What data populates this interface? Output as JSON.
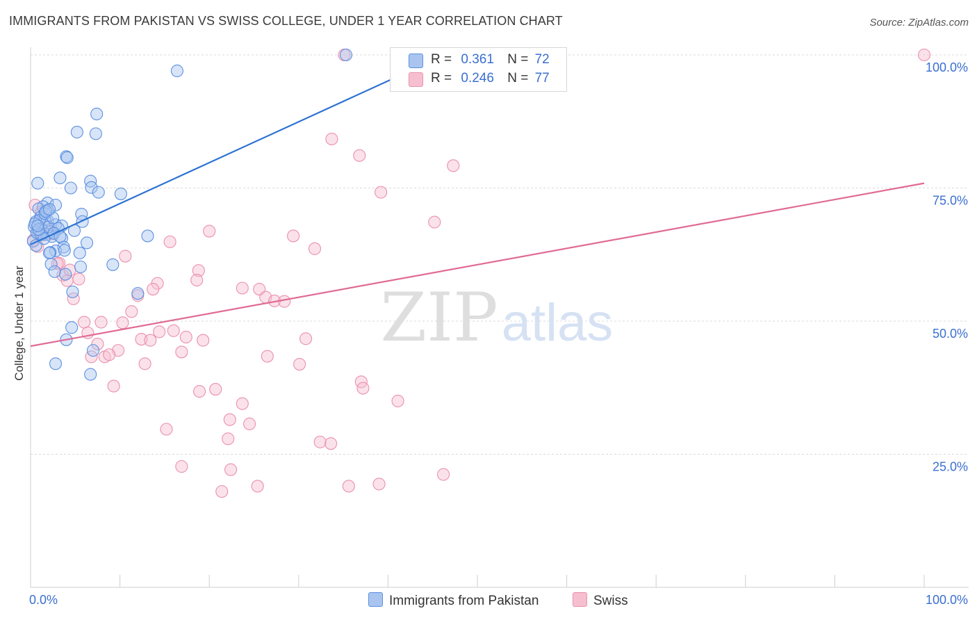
{
  "title": "IMMIGRANTS FROM PAKISTAN VS SWISS COLLEGE, UNDER 1 YEAR CORRELATION CHART",
  "source": "Source: ZipAtlas.com",
  "watermark": {
    "zip": "ZIP",
    "atlas": "atlas"
  },
  "legend": {
    "r_label": "R =",
    "n_label": "N =",
    "series": [
      {
        "r": "0.361",
        "n": "72"
      },
      {
        "r": "0.246",
        "n": "77"
      }
    ]
  },
  "bottom_legend": [
    "Immigrants from Pakistan",
    "Swiss"
  ],
  "colors": {
    "pakistan_fill": "#a9c5ef",
    "pakistan_stroke": "#5b8fe0",
    "pakistan_line": "#2e73d2",
    "swiss_fill": "#f6bfd0",
    "swiss_stroke": "#ea8fae",
    "swiss_line": "#e06a95",
    "tick_label": "#3a6fd0",
    "grid": "#d9d9d9"
  },
  "chart_data": {
    "type": "scatter",
    "xlabel": "",
    "ylabel": "College, Under 1 year",
    "xlim": [
      0,
      100
    ],
    "ylim": [
      0,
      100
    ],
    "x_tick_labels": [
      "0.0%",
      "100.0%"
    ],
    "y_ticks": [
      25,
      50,
      75,
      100
    ],
    "y_tick_labels": [
      "25.0%",
      "50.0%",
      "75.0%",
      "100.0%"
    ],
    "grid": true,
    "series": [
      {
        "name": "Immigrants from Pakistan",
        "points": [
          [
            35.3,
            100
          ],
          [
            16.4,
            97
          ],
          [
            7.4,
            88.9
          ],
          [
            5.2,
            85.5
          ],
          [
            7.3,
            85.2
          ],
          [
            4.0,
            80.9
          ],
          [
            4.1,
            80.7
          ],
          [
            3.3,
            76.9
          ],
          [
            0.8,
            75.9
          ],
          [
            6.7,
            76.3
          ],
          [
            4.5,
            75.0
          ],
          [
            6.8,
            75.1
          ],
          [
            7.6,
            74.2
          ],
          [
            10.1,
            73.9
          ],
          [
            1.9,
            72.2
          ],
          [
            1.4,
            71.5
          ],
          [
            2.8,
            71.8
          ],
          [
            0.9,
            71.1
          ],
          [
            1.9,
            70.8
          ],
          [
            5.7,
            70.1
          ],
          [
            1.1,
            69.5
          ],
          [
            1.9,
            68.9
          ],
          [
            1.6,
            69.1
          ],
          [
            0.6,
            68.7
          ],
          [
            5.8,
            68.7
          ],
          [
            2.8,
            68.1
          ],
          [
            3.5,
            67.9
          ],
          [
            0.4,
            67.7
          ],
          [
            1.3,
            67.1
          ],
          [
            2.2,
            66.8
          ],
          [
            4.9,
            67.0
          ],
          [
            0.9,
            66.5
          ],
          [
            1.8,
            66.3
          ],
          [
            2.4,
            65.9
          ],
          [
            3.5,
            65.6
          ],
          [
            13.1,
            66.0
          ],
          [
            0.3,
            65.0
          ],
          [
            6.3,
            64.7
          ],
          [
            0.6,
            64.2
          ],
          [
            3.7,
            63.9
          ],
          [
            2.8,
            63.2
          ],
          [
            2.2,
            62.9
          ],
          [
            3.8,
            63.3
          ],
          [
            2.1,
            62.8
          ],
          [
            5.5,
            62.8
          ],
          [
            2.3,
            60.7
          ],
          [
            5.6,
            60.2
          ],
          [
            9.2,
            60.6
          ],
          [
            2.7,
            59.3
          ],
          [
            3.9,
            58.8
          ],
          [
            4.7,
            55.5
          ],
          [
            12.0,
            55.2
          ],
          [
            4.6,
            48.8
          ],
          [
            4.0,
            46.5
          ],
          [
            7.0,
            44.5
          ],
          [
            2.8,
            42.0
          ],
          [
            6.7,
            40.0
          ],
          [
            0.7,
            66.6
          ],
          [
            1.0,
            68.9
          ],
          [
            1.6,
            70.2
          ],
          [
            2.0,
            67.7
          ],
          [
            2.5,
            69.4
          ],
          [
            3.1,
            67.4
          ],
          [
            1.2,
            66.2
          ],
          [
            0.5,
            68.3
          ],
          [
            2.6,
            66.5
          ],
          [
            1.5,
            65.5
          ],
          [
            3.3,
            65.9
          ],
          [
            0.9,
            67.2
          ],
          [
            1.7,
            70.6
          ],
          [
            2.1,
            71.0
          ],
          [
            0.8,
            67.9
          ]
        ]
      },
      {
        "name": "Swiss",
        "points": [
          [
            35.1,
            100
          ],
          [
            100,
            100
          ],
          [
            33.7,
            84.2
          ],
          [
            36.8,
            81.1
          ],
          [
            47.3,
            79.2
          ],
          [
            39.2,
            74.2
          ],
          [
            45.2,
            68.6
          ],
          [
            0.5,
            71.8
          ],
          [
            1.2,
            70.5
          ],
          [
            20.0,
            66.9
          ],
          [
            29.4,
            66.0
          ],
          [
            15.6,
            64.9
          ],
          [
            0.8,
            64.0
          ],
          [
            31.8,
            63.6
          ],
          [
            10.6,
            62.2
          ],
          [
            1.5,
            66.2
          ],
          [
            3.2,
            60.9
          ],
          [
            3.6,
            58.6
          ],
          [
            18.8,
            59.5
          ],
          [
            4.4,
            59.6
          ],
          [
            5.4,
            57.9
          ],
          [
            18.6,
            57.7
          ],
          [
            14.2,
            57.1
          ],
          [
            23.7,
            56.2
          ],
          [
            13.7,
            56.0
          ],
          [
            25.6,
            56.0
          ],
          [
            12.0,
            54.8
          ],
          [
            26.3,
            54.5
          ],
          [
            27.3,
            53.8
          ],
          [
            28.4,
            53.7
          ],
          [
            4.8,
            54.2
          ],
          [
            11.3,
            51.8
          ],
          [
            6.0,
            49.8
          ],
          [
            7.9,
            49.8
          ],
          [
            10.3,
            49.7
          ],
          [
            14.4,
            48.0
          ],
          [
            6.4,
            47.8
          ],
          [
            16.0,
            48.2
          ],
          [
            17.4,
            47.0
          ],
          [
            12.4,
            46.6
          ],
          [
            13.4,
            46.4
          ],
          [
            19.3,
            46.4
          ],
          [
            30.8,
            46.7
          ],
          [
            7.5,
            45.7
          ],
          [
            9.8,
            44.5
          ],
          [
            16.9,
            44.2
          ],
          [
            6.8,
            43.3
          ],
          [
            8.3,
            43.3
          ],
          [
            8.8,
            43.7
          ],
          [
            26.5,
            43.4
          ],
          [
            12.8,
            42.0
          ],
          [
            30.1,
            41.9
          ],
          [
            37.0,
            38.6
          ],
          [
            9.3,
            37.8
          ],
          [
            37.2,
            37.4
          ],
          [
            18.9,
            36.8
          ],
          [
            20.7,
            37.2
          ],
          [
            41.1,
            35.0
          ],
          [
            23.7,
            34.5
          ],
          [
            22.3,
            31.5
          ],
          [
            24.5,
            30.7
          ],
          [
            15.2,
            29.7
          ],
          [
            22.1,
            27.9
          ],
          [
            32.4,
            27.3
          ],
          [
            33.6,
            27.0
          ],
          [
            16.9,
            22.7
          ],
          [
            22.4,
            22.1
          ],
          [
            46.2,
            21.2
          ],
          [
            25.4,
            19.0
          ],
          [
            35.6,
            19.0
          ],
          [
            39.0,
            19.4
          ],
          [
            21.4,
            18.0
          ],
          [
            0.3,
            65.2
          ],
          [
            1.8,
            67.8
          ],
          [
            2.4,
            66.4
          ],
          [
            3.0,
            60.8
          ],
          [
            4.1,
            57.6
          ]
        ]
      }
    ],
    "trendlines": [
      {
        "series": "Immigrants from Pakistan",
        "x": [
          0,
          40.5
        ],
        "y": [
          64.4,
          95.5
        ]
      },
      {
        "series": "Swiss",
        "x": [
          0,
          100
        ],
        "y": [
          45.3,
          75.9
        ]
      }
    ]
  }
}
